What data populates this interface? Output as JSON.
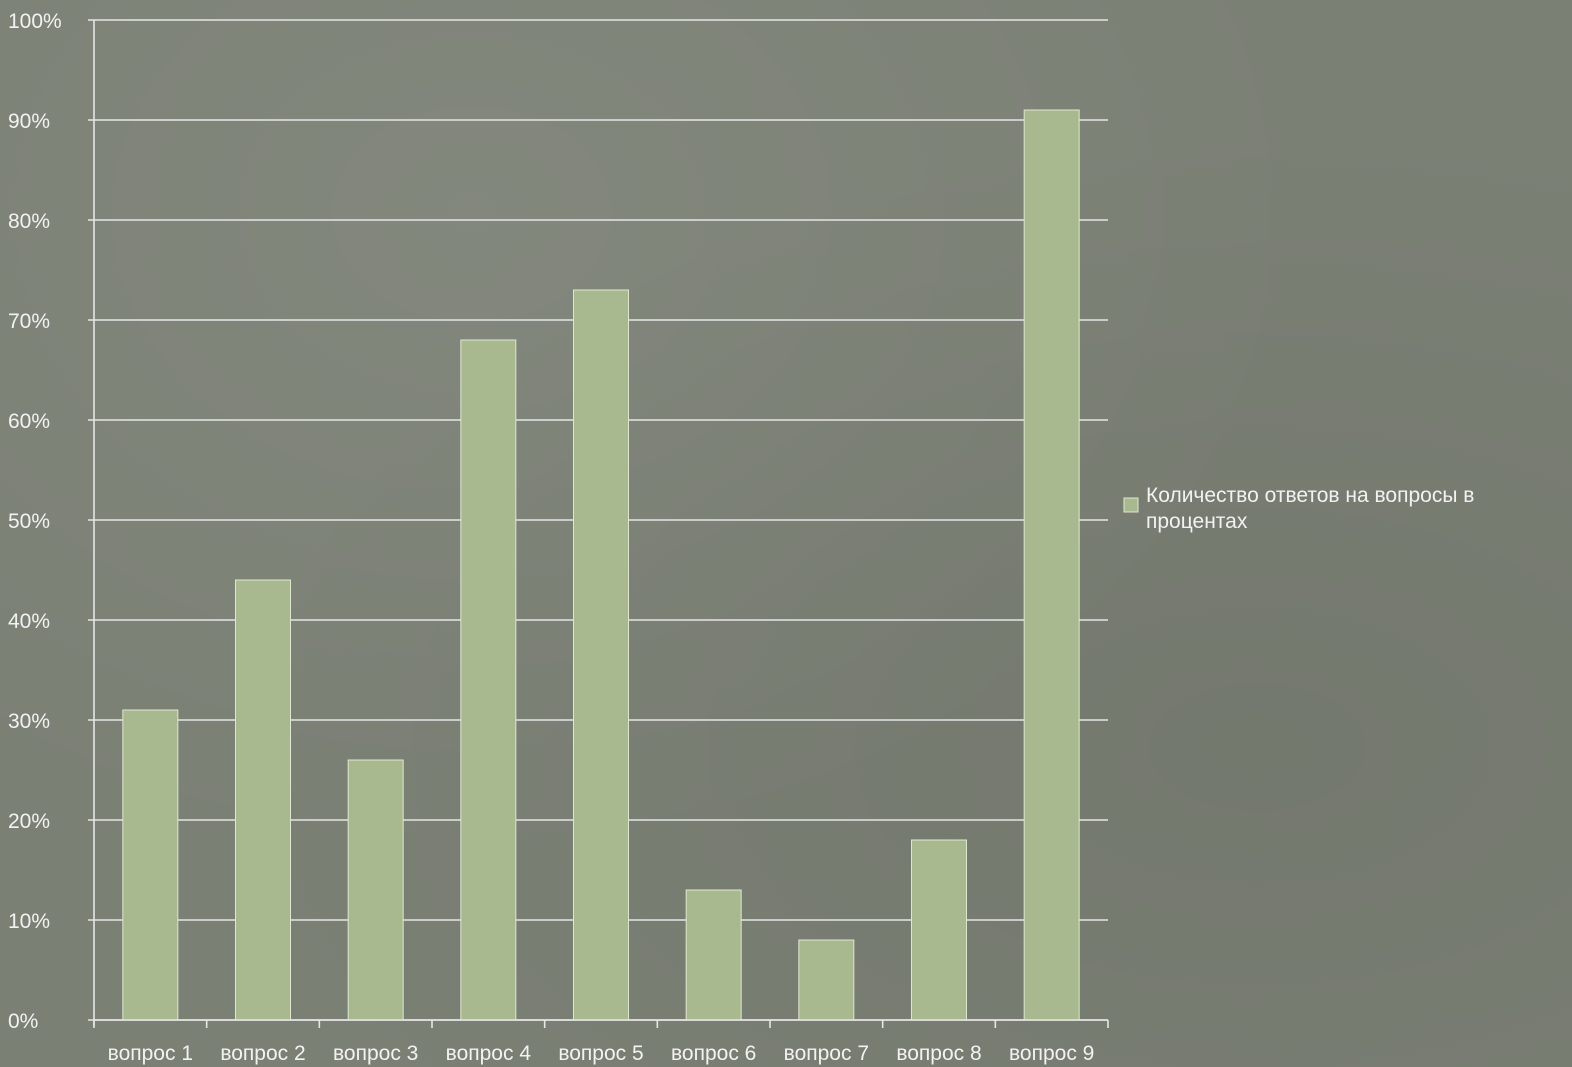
{
  "chart_data": {
    "type": "bar",
    "categories": [
      "вопрос 1",
      "вопрос 2",
      "вопрос 3",
      "вопрос 4",
      "вопрос 5",
      "вопрос 6",
      "вопрос 7",
      "вопрос 8",
      "вопрос 9"
    ],
    "series": [
      {
        "name": "Количество ответов на вопросы в процентах",
        "values": [
          31,
          44,
          26,
          68,
          73,
          13,
          8,
          18,
          91
        ]
      }
    ],
    "y_ticks": [
      "0%",
      "10%",
      "20%",
      "30%",
      "40%",
      "50%",
      "60%",
      "70%",
      "80%",
      "90%",
      "100%"
    ],
    "ylim": [
      0,
      100
    ],
    "grid": true,
    "legend_position": "right",
    "title": "",
    "xlabel": "",
    "ylabel": "",
    "colors": {
      "bar": "#a9b98f",
      "bar_edge": "#dfe6cf",
      "grid": "#e6e6e6",
      "axis": "#e6e6e6",
      "text": "#f2f2f2"
    }
  }
}
